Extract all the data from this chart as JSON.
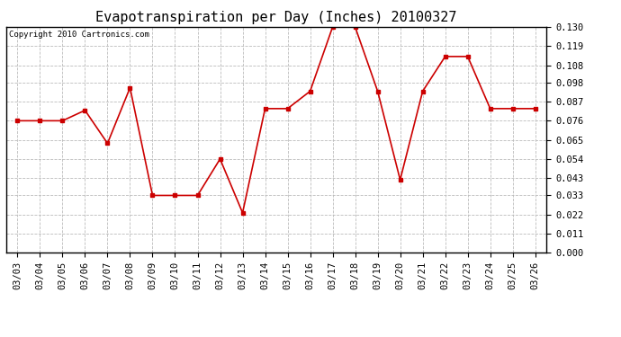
{
  "title": "Evapotranspiration per Day (Inches) 20100327",
  "copyright_text": "Copyright 2010 Cartronics.com",
  "dates": [
    "03/03",
    "03/04",
    "03/05",
    "03/06",
    "03/07",
    "03/08",
    "03/09",
    "03/10",
    "03/11",
    "03/12",
    "03/13",
    "03/14",
    "03/15",
    "03/16",
    "03/17",
    "03/18",
    "03/19",
    "03/20",
    "03/21",
    "03/22",
    "03/23",
    "03/24",
    "03/25",
    "03/26"
  ],
  "values": [
    0.076,
    0.076,
    0.076,
    0.082,
    0.063,
    0.095,
    0.033,
    0.033,
    0.033,
    0.054,
    0.023,
    0.083,
    0.083,
    0.093,
    0.13,
    0.13,
    0.093,
    0.042,
    0.093,
    0.113,
    0.113,
    0.083,
    0.083,
    0.083
  ],
  "ylim": [
    0.0,
    0.13
  ],
  "yticks": [
    0.0,
    0.011,
    0.022,
    0.033,
    0.043,
    0.054,
    0.065,
    0.076,
    0.087,
    0.098,
    0.108,
    0.119,
    0.13
  ],
  "line_color": "#cc0000",
  "marker": "s",
  "marker_size": 3,
  "background_color": "#ffffff",
  "plot_bg_color": "#ffffff",
  "grid_color": "#bbbbbb",
  "title_fontsize": 11,
  "copyright_fontsize": 6.5,
  "tick_fontsize": 7.5
}
